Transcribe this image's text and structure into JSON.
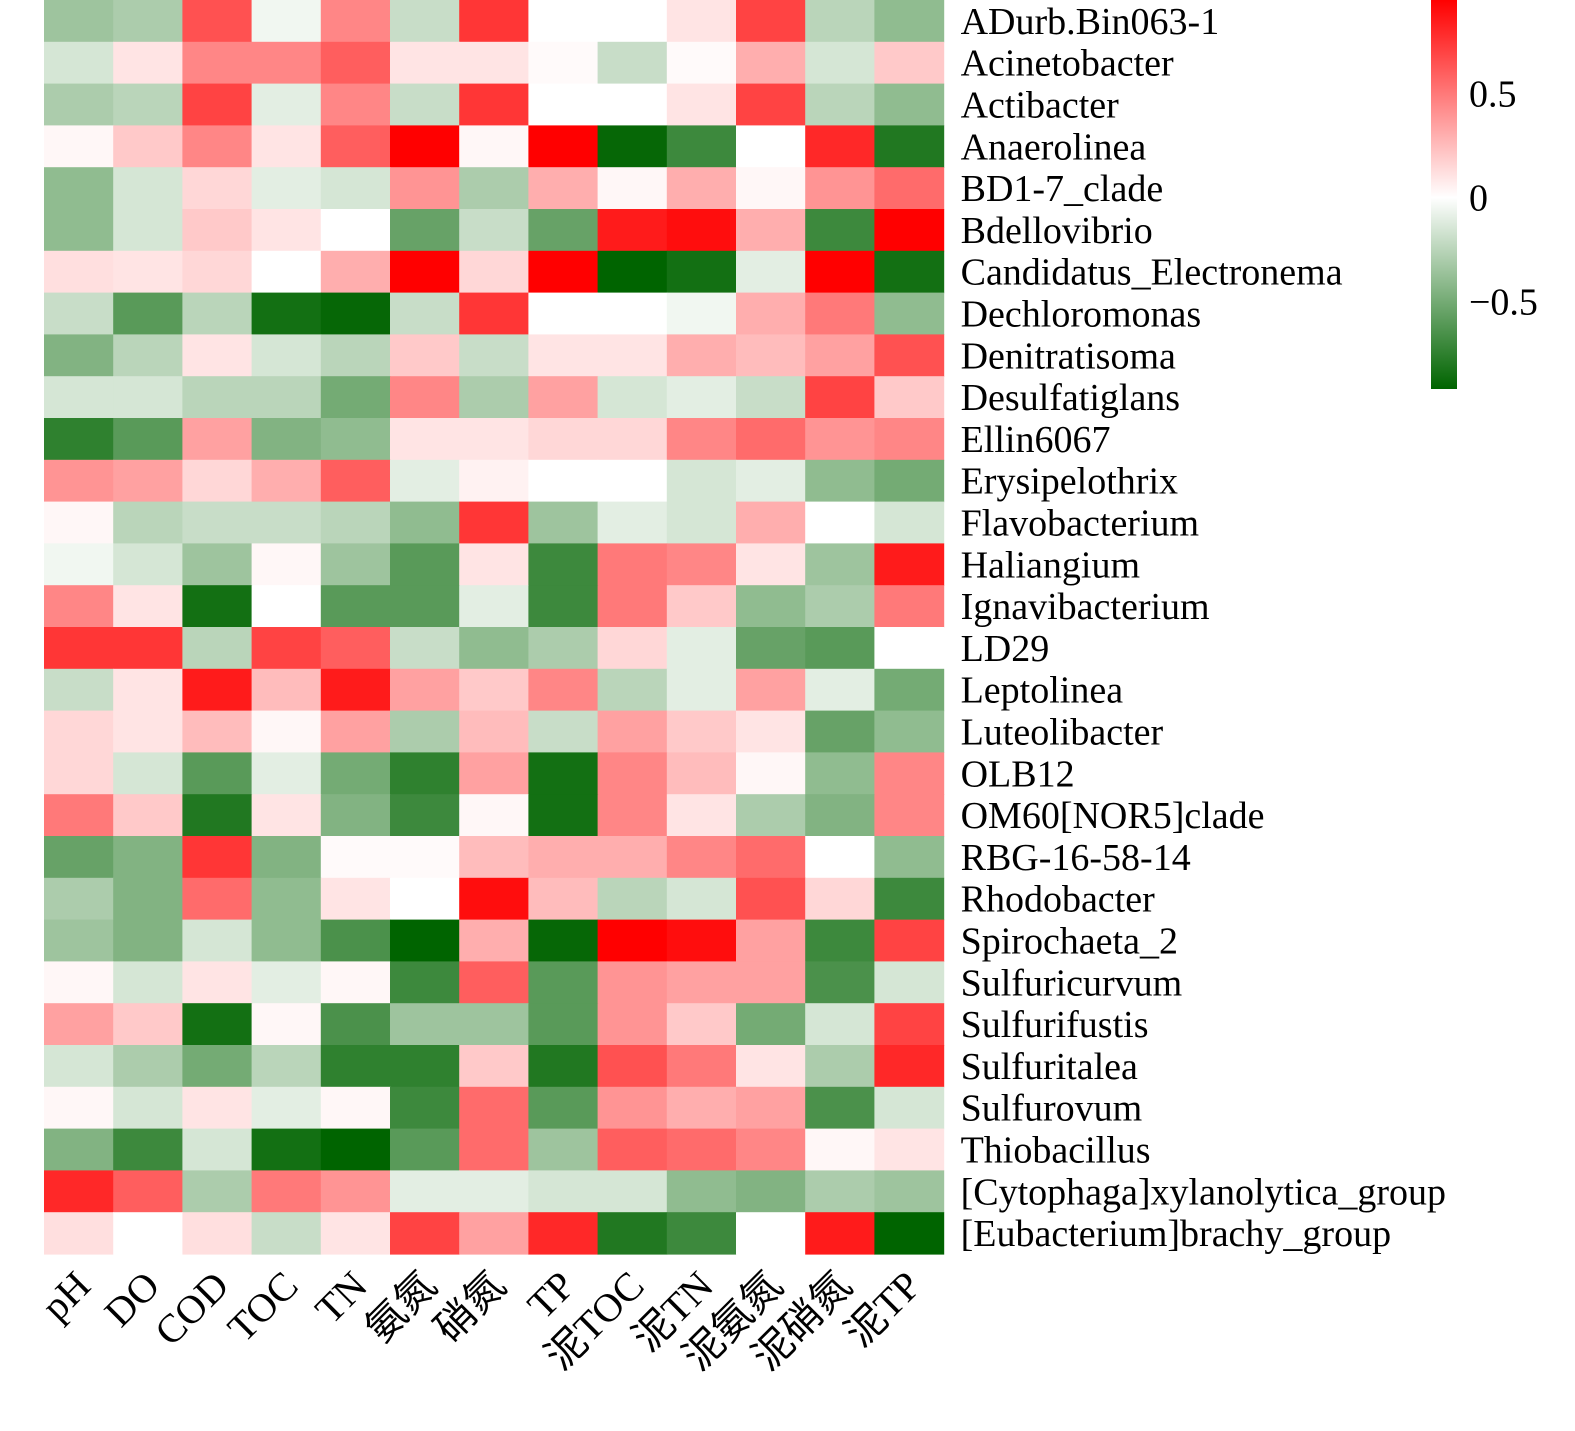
{
  "chart_data": {
    "type": "heatmap",
    "x": [
      "pH",
      "DO",
      "COD",
      "TOC",
      "TN",
      "氨氮",
      "硝氮",
      "TP",
      "泥TOC",
      "泥TN",
      "泥氨氮",
      "泥硝氮",
      "泥TP"
    ],
    "y": [
      "ADurb.Bin063-1",
      "Acinetobacter",
      "Actibacter",
      "Anaerolinea",
      "BD1-7_clade",
      "Bdellovibrio",
      "Candidatus_Electronema",
      "Dechloromonas",
      "Denitratisoma",
      "Desulfatiglans",
      "Ellin6067",
      "Erysipelothrix",
      "Flavobacterium",
      "Haliangium",
      "Ignavibacterium",
      "LD29",
      "Leptolinea",
      "Luteolibacter",
      "OLB12",
      "OM60[NOR5]clade",
      "RBG-16-58-14",
      "Rhodobacter",
      "Spirochaeta_2",
      "Sulfuricurvum",
      "Sulfurifustis",
      "Sulfuritalea",
      "Sulfurovum",
      "Thiobacillus",
      "[Cytophaga]xylanolytica_group",
      "[Eubacterium]brachy_group"
    ],
    "values": [
      [
        -0.35,
        -0.3,
        0.65,
        -0.05,
        0.45,
        -0.2,
        0.75,
        0.0,
        0.0,
        0.1,
        0.7,
        -0.25,
        -0.4
      ],
      [
        -0.15,
        0.1,
        0.45,
        0.45,
        0.6,
        0.1,
        0.1,
        0.02,
        -0.2,
        0.02,
        0.3,
        -0.15,
        0.2
      ],
      [
        -0.3,
        -0.25,
        0.7,
        -0.1,
        0.45,
        -0.2,
        0.75,
        0.0,
        0.0,
        0.1,
        0.7,
        -0.25,
        -0.4
      ],
      [
        0.03,
        0.2,
        0.45,
        0.1,
        0.6,
        0.95,
        0.03,
        1.0,
        -0.9,
        -0.7,
        0.0,
        0.8,
        -0.8
      ],
      [
        -0.4,
        -0.15,
        0.15,
        -0.1,
        -0.15,
        0.4,
        -0.3,
        0.3,
        0.03,
        0.3,
        0.03,
        0.4,
        0.55
      ],
      [
        -0.4,
        -0.15,
        0.2,
        0.1,
        0.0,
        -0.55,
        -0.2,
        -0.55,
        0.85,
        0.9,
        0.3,
        -0.7,
        0.95
      ],
      [
        0.12,
        0.1,
        0.15,
        0.0,
        0.3,
        0.95,
        0.15,
        0.95,
        -1.0,
        -0.85,
        -0.1,
        0.95,
        -0.85
      ],
      [
        -0.2,
        -0.6,
        -0.25,
        -0.85,
        -0.9,
        -0.2,
        0.75,
        0.0,
        0.0,
        -0.05,
        0.3,
        0.5,
        -0.4
      ],
      [
        -0.45,
        -0.25,
        0.1,
        -0.15,
        -0.25,
        0.2,
        -0.2,
        0.1,
        0.1,
        0.3,
        0.25,
        0.35,
        0.65
      ],
      [
        -0.15,
        -0.15,
        -0.25,
        -0.25,
        -0.5,
        0.45,
        -0.3,
        0.35,
        -0.15,
        -0.1,
        -0.2,
        0.7,
        0.2
      ],
      [
        -0.75,
        -0.6,
        0.35,
        -0.45,
        -0.4,
        0.1,
        0.1,
        0.15,
        0.15,
        0.45,
        0.55,
        0.4,
        0.45
      ],
      [
        0.4,
        0.35,
        0.15,
        0.3,
        0.6,
        -0.1,
        0.05,
        0.0,
        0.0,
        -0.15,
        -0.1,
        -0.4,
        -0.5
      ],
      [
        0.03,
        -0.25,
        -0.2,
        -0.2,
        -0.25,
        -0.4,
        0.75,
        -0.35,
        -0.1,
        -0.15,
        0.3,
        0.0,
        -0.15
      ],
      [
        -0.05,
        -0.15,
        -0.35,
        0.03,
        -0.35,
        -0.6,
        0.1,
        -0.7,
        0.5,
        0.45,
        0.1,
        -0.35,
        0.85
      ],
      [
        0.45,
        0.1,
        -0.85,
        0.0,
        -0.6,
        -0.6,
        -0.1,
        -0.7,
        0.5,
        0.2,
        -0.4,
        -0.3,
        0.5
      ],
      [
        0.75,
        0.75,
        -0.25,
        0.7,
        0.6,
        -0.2,
        -0.4,
        -0.3,
        0.15,
        -0.1,
        -0.55,
        -0.6,
        0.0
      ],
      [
        -0.2,
        0.1,
        0.85,
        0.25,
        0.85,
        0.35,
        0.2,
        0.45,
        -0.25,
        -0.1,
        0.35,
        -0.1,
        -0.5
      ],
      [
        0.15,
        0.1,
        0.25,
        0.03,
        0.35,
        -0.3,
        0.25,
        -0.2,
        0.35,
        0.2,
        0.1,
        -0.55,
        -0.4
      ],
      [
        0.15,
        -0.15,
        -0.6,
        -0.1,
        -0.5,
        -0.75,
        0.35,
        -0.85,
        0.45,
        0.25,
        0.03,
        -0.4,
        0.45
      ],
      [
        0.5,
        0.2,
        -0.8,
        0.1,
        -0.45,
        -0.7,
        0.03,
        -0.85,
        0.45,
        0.1,
        -0.3,
        -0.45,
        0.45
      ],
      [
        -0.55,
        -0.45,
        0.75,
        -0.45,
        0.02,
        0.02,
        0.25,
        0.3,
        0.3,
        0.45,
        0.55,
        0.0,
        -0.4
      ],
      [
        -0.3,
        -0.45,
        0.55,
        -0.4,
        0.1,
        0.0,
        0.9,
        0.25,
        -0.25,
        -0.15,
        0.65,
        0.15,
        -0.7
      ],
      [
        -0.35,
        -0.45,
        -0.15,
        -0.4,
        -0.65,
        -1.0,
        0.3,
        -0.9,
        1.0,
        0.9,
        0.35,
        -0.7,
        0.7
      ],
      [
        0.03,
        -0.15,
        0.1,
        -0.1,
        0.03,
        -0.7,
        0.6,
        -0.6,
        0.4,
        0.35,
        0.35,
        -0.65,
        -0.15
      ],
      [
        0.35,
        0.2,
        -0.85,
        0.03,
        -0.65,
        -0.35,
        -0.35,
        -0.6,
        0.4,
        0.2,
        -0.5,
        -0.15,
        0.7
      ],
      [
        -0.15,
        -0.3,
        -0.5,
        -0.25,
        -0.75,
        -0.75,
        0.2,
        -0.8,
        0.65,
        0.5,
        0.1,
        -0.3,
        0.8
      ],
      [
        0.03,
        -0.15,
        0.1,
        -0.1,
        0.03,
        -0.7,
        0.55,
        -0.6,
        0.4,
        0.3,
        0.35,
        -0.65,
        -0.15
      ],
      [
        -0.45,
        -0.7,
        -0.15,
        -0.85,
        -0.95,
        -0.6,
        0.55,
        -0.35,
        0.6,
        0.55,
        0.45,
        0.03,
        0.1
      ],
      [
        0.8,
        0.6,
        -0.3,
        0.5,
        0.4,
        -0.1,
        -0.1,
        -0.15,
        -0.15,
        -0.4,
        -0.45,
        -0.3,
        -0.35
      ],
      [
        0.12,
        0.0,
        0.12,
        -0.2,
        0.1,
        0.7,
        0.35,
        0.8,
        -0.8,
        -0.7,
        0.0,
        0.85,
        -1.0
      ]
    ],
    "colorbar": {
      "ticks": [
        0.5,
        0,
        -0.5
      ],
      "tick_labels": [
        "0.5",
        "0",
        "−0.5"
      ],
      "range": [
        -0.92,
        0.95
      ],
      "colors": {
        "low": "#006400",
        "mid": "#ffffff",
        "high": "#ff0000"
      }
    }
  }
}
